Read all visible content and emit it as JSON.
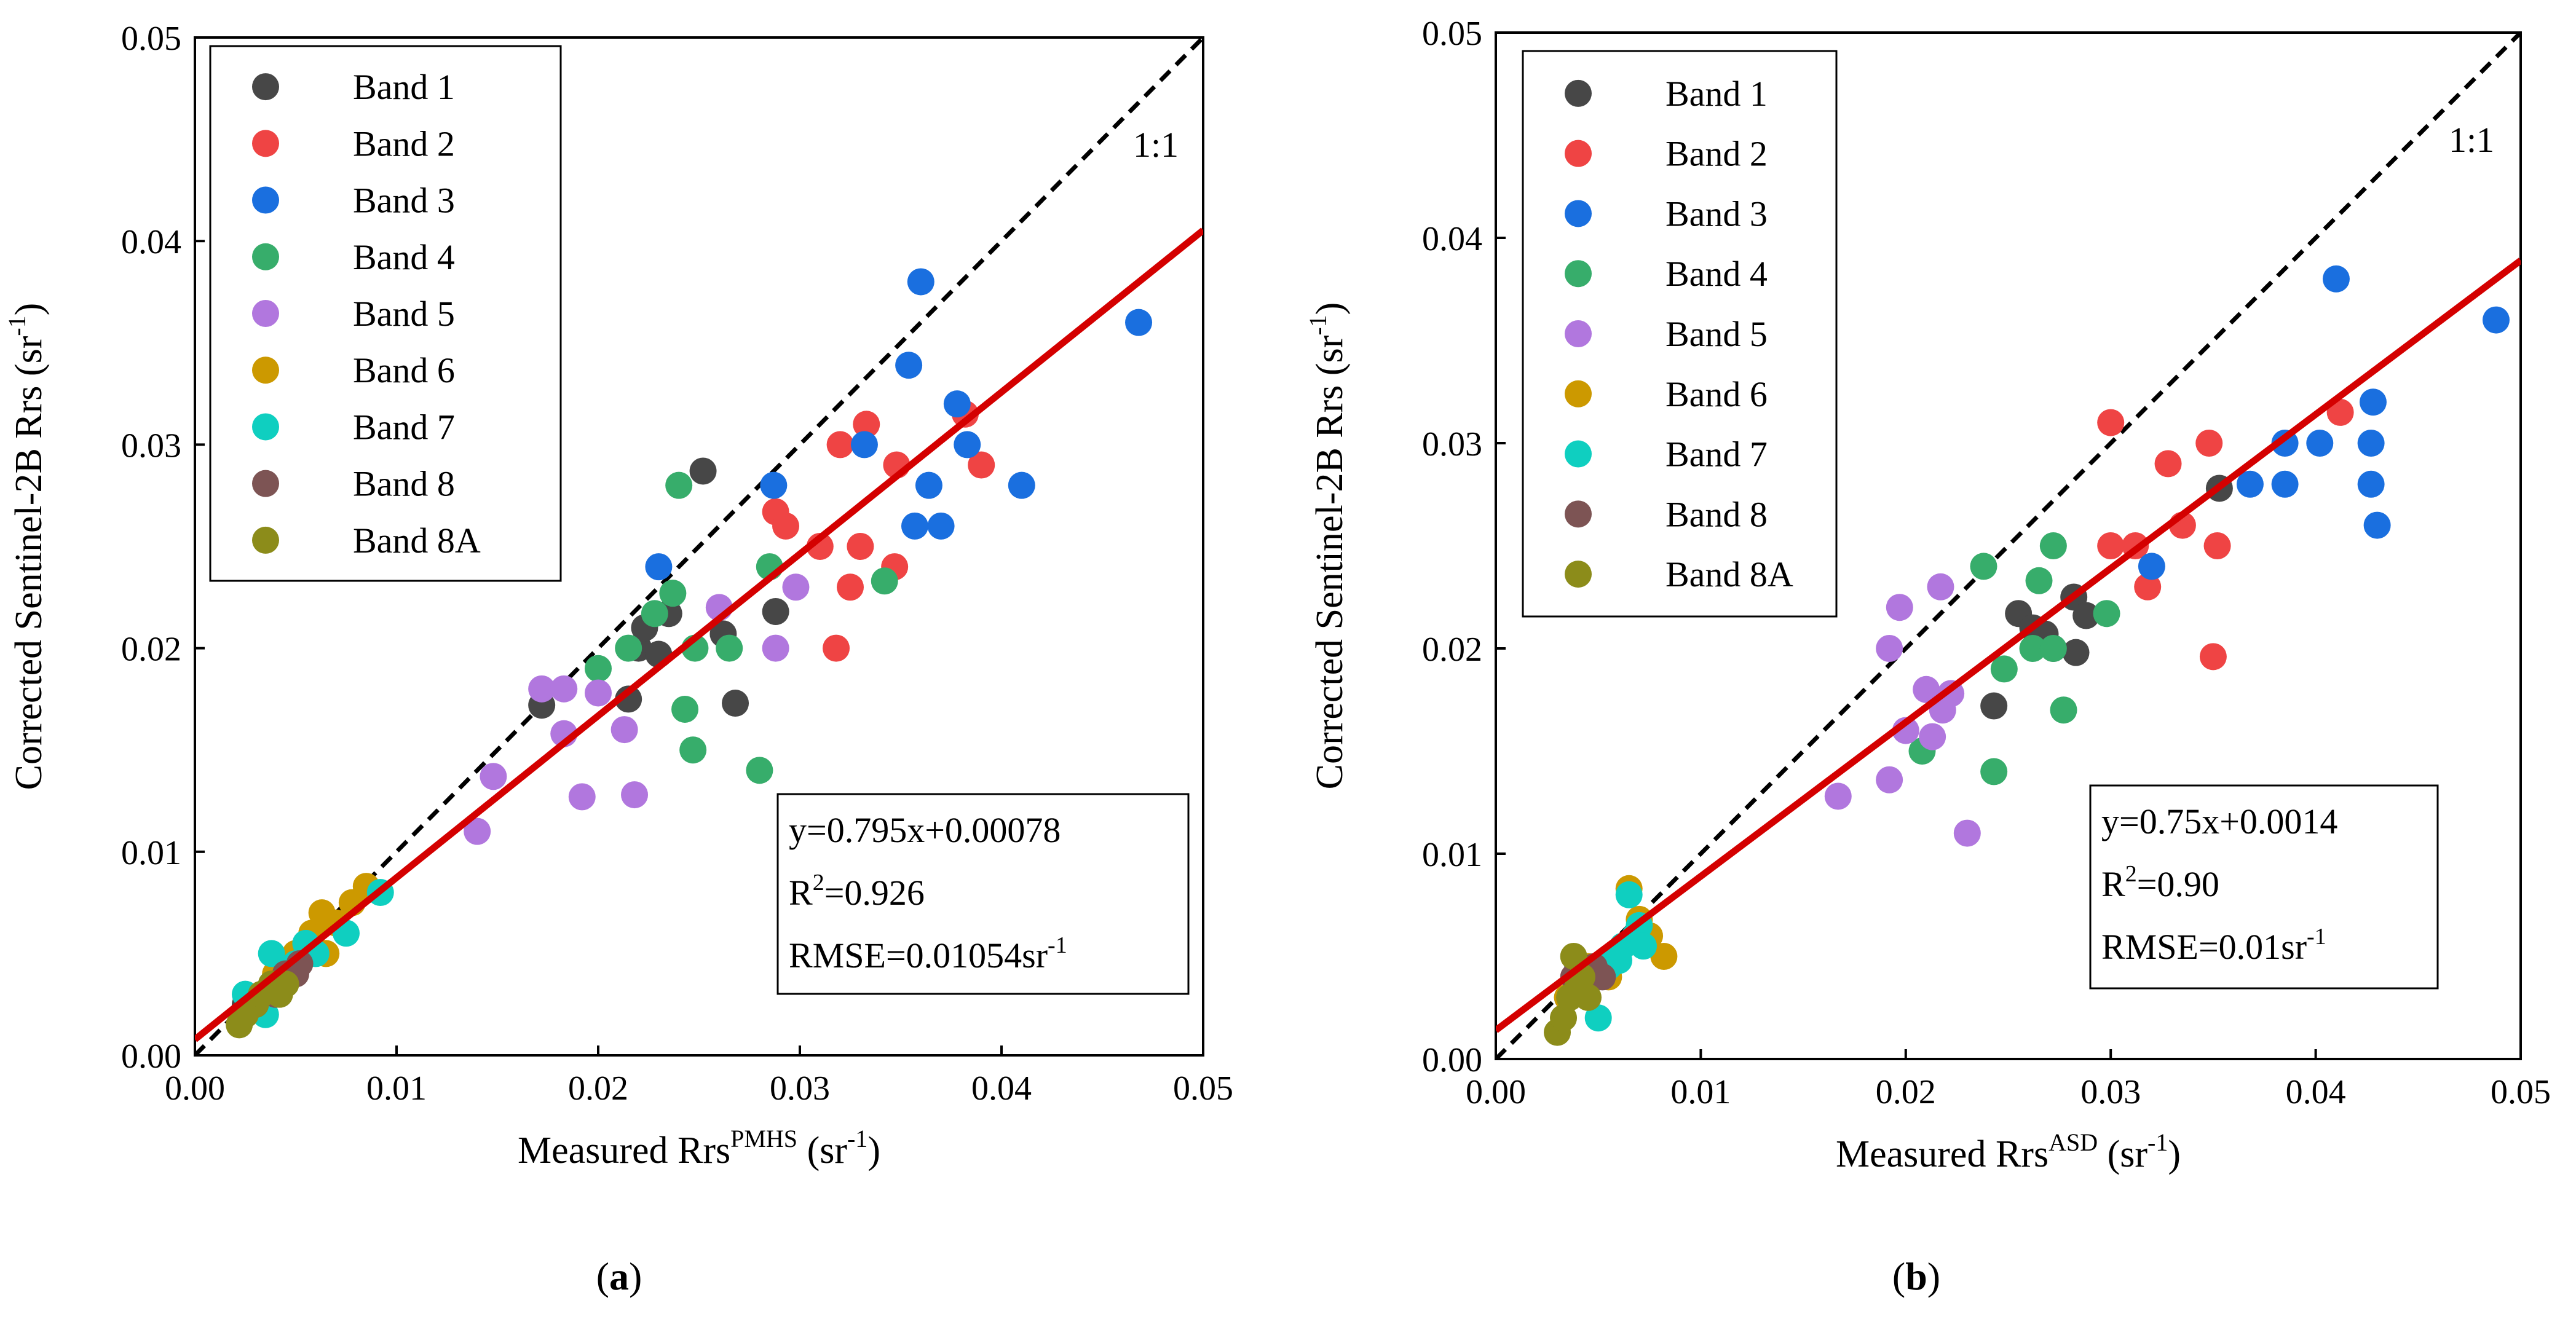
{
  "chart_data": [
    {
      "type": "scatter",
      "panel_label": "(a)",
      "title": "",
      "xlabel": {
        "main": "Measured Rrs",
        "sup": "PMHS",
        "unit_pre": " (sr",
        "unit_sup": "-1",
        "unit_post": ")"
      },
      "ylabel": {
        "main": "Corrected Sentinel-2B Rrs (sr",
        "sup": "-1",
        "post": ")"
      },
      "xlim": [
        0,
        0.05
      ],
      "ylim": [
        0,
        0.05
      ],
      "xticks": [
        "0.00",
        "0.01",
        "0.02",
        "0.03",
        "0.04",
        "0.05"
      ],
      "yticks": [
        "0.00",
        "0.01",
        "0.02",
        "0.03",
        "0.04",
        "0.05"
      ],
      "one_to_one_label": "1:1",
      "fit": {
        "slope": 0.795,
        "intercept": 0.00078,
        "color": "#d40000"
      },
      "stats": {
        "equation": "y=0.795x+0.00078",
        "r2_prefix": "R",
        "r2_sup": "2",
        "r2_value": "=0.926",
        "rmse_prefix": "RMSE=0.01054sr",
        "rmse_sup": "-1"
      },
      "series": [
        {
          "name": "Band 1",
          "color": "#474747",
          "points": [
            [
              0.0172,
              0.0172
            ],
            [
              0.0215,
              0.0175
            ],
            [
              0.022,
              0.02
            ],
            [
              0.0223,
              0.021
            ],
            [
              0.023,
              0.0197
            ],
            [
              0.0235,
              0.0217
            ],
            [
              0.0252,
              0.0287
            ],
            [
              0.0262,
              0.0207
            ],
            [
              0.0268,
              0.0173
            ],
            [
              0.0288,
              0.0218
            ],
            [
              0.0025,
              0.0025
            ],
            [
              0.0035,
              0.003
            ]
          ]
        },
        {
          "name": "Band 2",
          "color": "#ef4444",
          "points": [
            [
              0.0288,
              0.0267
            ],
            [
              0.0293,
              0.026
            ],
            [
              0.031,
              0.025
            ],
            [
              0.0318,
              0.02
            ],
            [
              0.032,
              0.03
            ],
            [
              0.0325,
              0.023
            ],
            [
              0.033,
              0.025
            ],
            [
              0.0333,
              0.031
            ],
            [
              0.0347,
              0.024
            ],
            [
              0.0348,
              0.029
            ],
            [
              0.0382,
              0.0315
            ],
            [
              0.039,
              0.029
            ]
          ]
        },
        {
          "name": "Band 3",
          "color": "#1a6fdf",
          "points": [
            [
              0.023,
              0.024
            ],
            [
              0.0287,
              0.028
            ],
            [
              0.0332,
              0.03
            ],
            [
              0.0354,
              0.0339
            ],
            [
              0.0357,
              0.026
            ],
            [
              0.036,
              0.038
            ],
            [
              0.0364,
              0.028
            ],
            [
              0.037,
              0.026
            ],
            [
              0.0378,
              0.032
            ],
            [
              0.0383,
              0.03
            ],
            [
              0.041,
              0.028
            ],
            [
              0.0468,
              0.036
            ]
          ]
        },
        {
          "name": "Band 4",
          "color": "#37ad6b",
          "points": [
            [
              0.02,
              0.019
            ],
            [
              0.0215,
              0.02
            ],
            [
              0.0228,
              0.0217
            ],
            [
              0.0237,
              0.0227
            ],
            [
              0.024,
              0.028
            ],
            [
              0.0243,
              0.017
            ],
            [
              0.0247,
              0.015
            ],
            [
              0.0248,
              0.02
            ],
            [
              0.0265,
              0.02
            ],
            [
              0.028,
              0.014
            ],
            [
              0.0285,
              0.024
            ],
            [
              0.0342,
              0.0233
            ]
          ]
        },
        {
          "name": "Band 5",
          "color": "#b177de",
          "points": [
            [
              0.014,
              0.011
            ],
            [
              0.0148,
              0.0137
            ],
            [
              0.0172,
              0.018
            ],
            [
              0.0183,
              0.018
            ],
            [
              0.0183,
              0.0158
            ],
            [
              0.0192,
              0.0127
            ],
            [
              0.02,
              0.0178
            ],
            [
              0.0213,
              0.016
            ],
            [
              0.0218,
              0.0128
            ],
            [
              0.026,
              0.022
            ],
            [
              0.0288,
              0.02
            ],
            [
              0.0298,
              0.023
            ]
          ]
        },
        {
          "name": "Band 6",
          "color": "#cc9900",
          "points": [
            [
              0.004,
              0.004
            ],
            [
              0.005,
              0.005
            ],
            [
              0.0058,
              0.006
            ],
            [
              0.0063,
              0.007
            ],
            [
              0.0065,
              0.005
            ],
            [
              0.007,
              0.0065
            ],
            [
              0.0078,
              0.0075
            ],
            [
              0.0085,
              0.0083
            ]
          ]
        },
        {
          "name": "Band 7",
          "color": "#0fcfc0",
          "points": [
            [
              0.0025,
              0.003
            ],
            [
              0.0035,
              0.002
            ],
            [
              0.0038,
              0.005
            ],
            [
              0.005,
              0.0045
            ],
            [
              0.0055,
              0.0055
            ],
            [
              0.006,
              0.005
            ],
            [
              0.0075,
              0.006
            ],
            [
              0.0092,
              0.008
            ]
          ]
        },
        {
          "name": "Band 8",
          "color": "#7d5454",
          "points": [
            [
              0.003,
              0.0025
            ],
            [
              0.004,
              0.003
            ],
            [
              0.0045,
              0.004
            ],
            [
              0.005,
              0.004
            ],
            [
              0.0052,
              0.0045
            ]
          ]
        },
        {
          "name": "Band 8A",
          "color": "#8c8c1a",
          "points": [
            [
              0.0022,
              0.0015
            ],
            [
              0.0025,
              0.002
            ],
            [
              0.003,
              0.0025
            ],
            [
              0.0033,
              0.003
            ],
            [
              0.0038,
              0.0035
            ],
            [
              0.0042,
              0.003
            ],
            [
              0.0045,
              0.0035
            ]
          ]
        }
      ]
    },
    {
      "type": "scatter",
      "panel_label": "(b)",
      "title": "",
      "xlabel": {
        "main": "Measured Rrs",
        "sup": "ASD",
        "unit_pre": " (sr",
        "unit_sup": "-1",
        "unit_post": ")"
      },
      "ylabel": {
        "main": "Corrected Sentinel-2B Rrs (sr",
        "sup": "-1",
        "post": ")"
      },
      "xlim": [
        0,
        0.05
      ],
      "ylim": [
        0,
        0.05
      ],
      "xticks": [
        "0.00",
        "0.01",
        "0.02",
        "0.03",
        "0.04",
        "0.05"
      ],
      "yticks": [
        "0.00",
        "0.01",
        "0.02",
        "0.03",
        "0.04",
        "0.05"
      ],
      "one_to_one_label": "1:1",
      "fit": {
        "slope": 0.75,
        "intercept": 0.0014,
        "color": "#d40000"
      },
      "stats": {
        "equation": "y=0.75x+0.0014",
        "r2_prefix": "R",
        "r2_sup": "2",
        "r2_value": "=0.90",
        "rmse_prefix": "RMSE=0.01sr",
        "rmse_sup": "-1"
      },
      "series": [
        {
          "name": "Band 1",
          "color": "#474747",
          "points": [
            [
              0.0243,
              0.0172
            ],
            [
              0.0255,
              0.0217
            ],
            [
              0.0262,
              0.021
            ],
            [
              0.0268,
              0.0207
            ],
            [
              0.0272,
              0.02
            ],
            [
              0.0282,
              0.0225
            ],
            [
              0.0283,
              0.0198
            ],
            [
              0.0288,
              0.0216
            ],
            [
              0.0353,
              0.0278
            ],
            [
              0.0035,
              0.003
            ],
            [
              0.004,
              0.0045
            ]
          ]
        },
        {
          "name": "Band 2",
          "color": "#ef4444",
          "points": [
            [
              0.03,
              0.031
            ],
            [
              0.03,
              0.025
            ],
            [
              0.0312,
              0.025
            ],
            [
              0.0318,
              0.023
            ],
            [
              0.0328,
              0.029
            ],
            [
              0.0335,
              0.026
            ],
            [
              0.0348,
              0.03
            ],
            [
              0.035,
              0.0196
            ],
            [
              0.0352,
              0.025
            ],
            [
              0.0412,
              0.0315
            ]
          ]
        },
        {
          "name": "Band 3",
          "color": "#1a6fdf",
          "points": [
            [
              0.032,
              0.024
            ],
            [
              0.0368,
              0.028
            ],
            [
              0.0385,
              0.028
            ],
            [
              0.0385,
              0.03
            ],
            [
              0.0402,
              0.03
            ],
            [
              0.041,
              0.038
            ],
            [
              0.0427,
              0.028
            ],
            [
              0.0427,
              0.03
            ],
            [
              0.0428,
              0.032
            ],
            [
              0.043,
              0.026
            ],
            [
              0.0488,
              0.036
            ]
          ]
        },
        {
          "name": "Band 4",
          "color": "#37ad6b",
          "points": [
            [
              0.0208,
              0.015
            ],
            [
              0.0238,
              0.024
            ],
            [
              0.0243,
              0.014
            ],
            [
              0.0248,
              0.019
            ],
            [
              0.0262,
              0.02
            ],
            [
              0.0265,
              0.0233
            ],
            [
              0.0272,
              0.025
            ],
            [
              0.0272,
              0.02
            ],
            [
              0.0277,
              0.017
            ],
            [
              0.0298,
              0.0217
            ]
          ]
        },
        {
          "name": "Band 5",
          "color": "#b177de",
          "points": [
            [
              0.0167,
              0.0128
            ],
            [
              0.0192,
              0.0136
            ],
            [
              0.0192,
              0.02
            ],
            [
              0.0197,
              0.022
            ],
            [
              0.02,
              0.016
            ],
            [
              0.021,
              0.018
            ],
            [
              0.0213,
              0.0157
            ],
            [
              0.0217,
              0.023
            ],
            [
              0.0218,
              0.017
            ],
            [
              0.0222,
              0.0178
            ],
            [
              0.023,
              0.011
            ]
          ]
        },
        {
          "name": "Band 6",
          "color": "#cc9900",
          "points": [
            [
              0.0035,
              0.003
            ],
            [
              0.0045,
              0.0045
            ],
            [
              0.0055,
              0.004
            ],
            [
              0.0065,
              0.0083
            ],
            [
              0.007,
              0.0068
            ],
            [
              0.0075,
              0.006
            ],
            [
              0.0082,
              0.005
            ]
          ]
        },
        {
          "name": "Band 7",
          "color": "#0fcfc0",
          "points": [
            [
              0.005,
              0.002
            ],
            [
              0.0055,
              0.0045
            ],
            [
              0.0058,
              0.005
            ],
            [
              0.0062,
              0.0055
            ],
            [
              0.0065,
              0.008
            ],
            [
              0.0068,
              0.006
            ],
            [
              0.007,
              0.0065
            ],
            [
              0.0072,
              0.0055
            ],
            [
              0.006,
              0.0048
            ]
          ]
        },
        {
          "name": "Band 8",
          "color": "#7d5454",
          "points": [
            [
              0.0038,
              0.004
            ],
            [
              0.0042,
              0.0035
            ],
            [
              0.0048,
              0.0045
            ],
            [
              0.0052,
              0.004
            ]
          ]
        },
        {
          "name": "Band 8A",
          "color": "#8c8c1a",
          "points": [
            [
              0.003,
              0.0013
            ],
            [
              0.0033,
              0.002
            ],
            [
              0.0036,
              0.003
            ],
            [
              0.0038,
              0.005
            ],
            [
              0.004,
              0.0035
            ],
            [
              0.0042,
              0.004
            ],
            [
              0.0045,
              0.003
            ]
          ]
        }
      ]
    }
  ]
}
